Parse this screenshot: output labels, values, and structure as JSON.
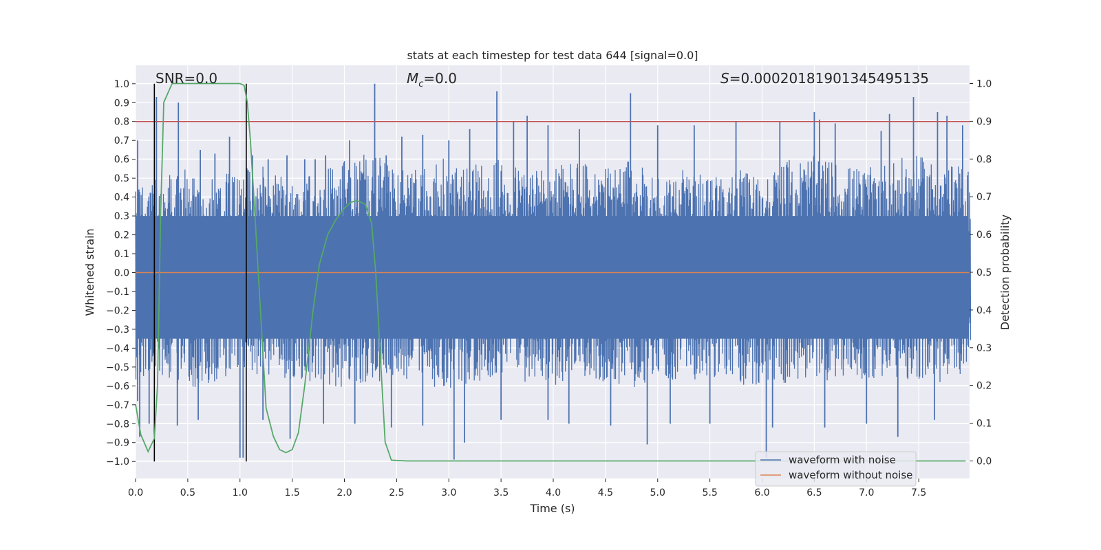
{
  "chart_data": {
    "type": "line",
    "title": "stats at each timestep for test data 644 [signal=0.0]",
    "xlabel": "Time (s)",
    "ylabel": "Whitened strain",
    "y2label": "Detection probability",
    "xlim": [
      0.0,
      8.0
    ],
    "ylim": [
      -1.08,
      1.1
    ],
    "y2lim": [
      -0.05,
      1.05
    ],
    "xticks": [
      "0.0",
      "0.5",
      "1.0",
      "1.5",
      "2.0",
      "2.5",
      "3.0",
      "3.5",
      "4.0",
      "4.5",
      "5.0",
      "5.5",
      "6.0",
      "6.5",
      "7.0",
      "7.5"
    ],
    "yticks": [
      "1.0",
      "0.9",
      "0.8",
      "0.7",
      "0.6",
      "0.5",
      "0.4",
      "0.3",
      "0.2",
      "0.1",
      "0.0",
      "−0.1",
      "−0.2",
      "−0.3",
      "−0.4",
      "−0.5",
      "−0.6",
      "−0.7",
      "−0.8",
      "−0.9",
      "−1.0"
    ],
    "y2ticks": [
      "1.0",
      "0.9",
      "0.8",
      "0.7",
      "0.6",
      "0.5",
      "0.4",
      "0.3",
      "0.2",
      "0.1",
      "0.0"
    ],
    "grid": true,
    "legend_position": "lower-right",
    "annotations": {
      "snr": "SNR=0.0",
      "mc_symbol": "M",
      "mc_sub": "c",
      "mc_value": "=0.0",
      "s_symbol": "S",
      "s_value": "=0.00020181901345495135"
    },
    "threshold": {
      "y": 0.8,
      "color": "#c44e52"
    },
    "vertical_markers": [
      0.18,
      1.06
    ],
    "series": [
      {
        "name": "waveform with noise",
        "color": "#4c72b0",
        "axis": "left",
        "envelope_top": [
          [
            0.0,
            0.45
          ],
          [
            0.25,
            0.52
          ],
          [
            0.5,
            0.55
          ],
          [
            0.75,
            0.5
          ],
          [
            1.0,
            0.55
          ],
          [
            1.25,
            0.58
          ],
          [
            1.5,
            0.5
          ],
          [
            1.75,
            0.52
          ],
          [
            2.0,
            0.6
          ],
          [
            2.25,
            0.65
          ],
          [
            2.5,
            0.55
          ],
          [
            2.75,
            0.55
          ],
          [
            3.0,
            0.62
          ],
          [
            3.25,
            0.58
          ],
          [
            3.5,
            0.6
          ],
          [
            3.75,
            0.55
          ],
          [
            4.0,
            0.58
          ],
          [
            4.25,
            0.6
          ],
          [
            4.5,
            0.55
          ],
          [
            4.75,
            0.6
          ],
          [
            5.0,
            0.52
          ],
          [
            5.25,
            0.55
          ],
          [
            5.5,
            0.5
          ],
          [
            5.75,
            0.55
          ],
          [
            6.0,
            0.52
          ],
          [
            6.25,
            0.6
          ],
          [
            6.5,
            0.62
          ],
          [
            6.75,
            0.58
          ],
          [
            7.0,
            0.55
          ],
          [
            7.25,
            0.6
          ],
          [
            7.5,
            0.62
          ],
          [
            7.75,
            0.58
          ],
          [
            8.0,
            0.55
          ]
        ],
        "envelope_bottom": [
          [
            0.0,
            -0.6
          ],
          [
            0.25,
            -0.55
          ],
          [
            0.5,
            -0.62
          ],
          [
            0.75,
            -0.58
          ],
          [
            1.0,
            -0.52
          ],
          [
            1.25,
            -0.55
          ],
          [
            1.5,
            -0.6
          ],
          [
            1.75,
            -0.58
          ],
          [
            2.0,
            -0.62
          ],
          [
            2.25,
            -0.6
          ],
          [
            2.5,
            -0.55
          ],
          [
            2.75,
            -0.6
          ],
          [
            3.0,
            -0.62
          ],
          [
            3.25,
            -0.58
          ],
          [
            3.5,
            -0.55
          ],
          [
            3.75,
            -0.58
          ],
          [
            4.0,
            -0.6
          ],
          [
            4.25,
            -0.55
          ],
          [
            4.5,
            -0.58
          ],
          [
            4.75,
            -0.62
          ],
          [
            5.0,
            -0.55
          ],
          [
            5.25,
            -0.58
          ],
          [
            5.5,
            -0.55
          ],
          [
            5.75,
            -0.6
          ],
          [
            6.0,
            -0.62
          ],
          [
            6.25,
            -0.58
          ],
          [
            6.5,
            -0.6
          ],
          [
            6.75,
            -0.55
          ],
          [
            7.0,
            -0.58
          ],
          [
            7.25,
            -0.55
          ],
          [
            7.5,
            -0.6
          ],
          [
            7.75,
            -0.58
          ],
          [
            8.0,
            -0.55
          ]
        ],
        "peaks": [
          [
            0.02,
            0.7
          ],
          [
            0.2,
            0.93
          ],
          [
            0.41,
            0.9
          ],
          [
            0.62,
            0.65
          ],
          [
            0.76,
            0.63
          ],
          [
            0.9,
            0.72
          ],
          [
            1.12,
            0.62
          ],
          [
            1.27,
            0.6
          ],
          [
            1.45,
            0.62
          ],
          [
            1.62,
            0.6
          ],
          [
            1.72,
            0.6
          ],
          [
            1.82,
            0.62
          ],
          [
            2.05,
            0.7
          ],
          [
            2.29,
            1.0
          ],
          [
            2.4,
            0.62
          ],
          [
            2.55,
            0.72
          ],
          [
            2.75,
            0.73
          ],
          [
            3.0,
            0.7
          ],
          [
            3.2,
            0.76
          ],
          [
            3.46,
            0.96
          ],
          [
            3.62,
            0.8
          ],
          [
            3.75,
            0.83
          ],
          [
            3.95,
            0.78
          ],
          [
            4.25,
            0.76
          ],
          [
            4.74,
            0.95
          ],
          [
            5.0,
            0.78
          ],
          [
            5.35,
            0.78
          ],
          [
            5.75,
            0.8
          ],
          [
            6.17,
            0.8
          ],
          [
            6.5,
            0.85
          ],
          [
            6.55,
            0.81
          ],
          [
            6.7,
            0.79
          ],
          [
            7.14,
            0.75
          ],
          [
            7.22,
            0.84
          ],
          [
            7.45,
            0.93
          ],
          [
            7.68,
            0.85
          ],
          [
            7.77,
            0.83
          ],
          [
            7.92,
            0.78
          ]
        ],
        "troughs": [
          [
            0.02,
            -0.68
          ],
          [
            0.04,
            -0.87
          ],
          [
            0.13,
            -0.8
          ],
          [
            0.4,
            -0.81
          ],
          [
            0.6,
            -0.78
          ],
          [
            1.0,
            -0.98
          ],
          [
            1.03,
            -0.98
          ],
          [
            1.22,
            -0.78
          ],
          [
            1.48,
            -0.88
          ],
          [
            1.8,
            -0.8
          ],
          [
            2.1,
            -0.8
          ],
          [
            2.45,
            -0.82
          ],
          [
            2.75,
            -0.81
          ],
          [
            3.05,
            -0.99
          ],
          [
            3.15,
            -0.9
          ],
          [
            3.5,
            -0.78
          ],
          [
            3.95,
            -0.78
          ],
          [
            4.15,
            -0.8
          ],
          [
            4.55,
            -0.81
          ],
          [
            4.9,
            -0.91
          ],
          [
            5.12,
            -0.8
          ],
          [
            5.5,
            -0.8
          ],
          [
            6.04,
            -0.98
          ],
          [
            6.1,
            -0.82
          ],
          [
            6.6,
            -0.82
          ],
          [
            7.0,
            -0.8
          ],
          [
            7.3,
            -0.87
          ],
          [
            7.65,
            -0.78
          ]
        ]
      },
      {
        "name": "waveform without noise",
        "color": "#dd8452",
        "axis": "left",
        "points": [
          [
            0.0,
            0.0
          ],
          [
            8.0,
            0.0
          ]
        ]
      },
      {
        "name": "",
        "color": "#55a868",
        "axis": "right",
        "points": [
          [
            0.0,
            0.15
          ],
          [
            0.05,
            0.07
          ],
          [
            0.12,
            0.025
          ],
          [
            0.18,
            0.06
          ],
          [
            0.21,
            0.2
          ],
          [
            0.24,
            0.65
          ],
          [
            0.27,
            0.95
          ],
          [
            0.35,
            1.0
          ],
          [
            0.6,
            1.0
          ],
          [
            0.8,
            1.0
          ],
          [
            1.0,
            1.0
          ],
          [
            1.04,
            0.995
          ],
          [
            1.07,
            0.95
          ],
          [
            1.1,
            0.85
          ],
          [
            1.15,
            0.62
          ],
          [
            1.2,
            0.38
          ],
          [
            1.25,
            0.14
          ],
          [
            1.32,
            0.065
          ],
          [
            1.38,
            0.03
          ],
          [
            1.44,
            0.022
          ],
          [
            1.5,
            0.03
          ],
          [
            1.56,
            0.075
          ],
          [
            1.62,
            0.2
          ],
          [
            1.7,
            0.4
          ],
          [
            1.76,
            0.52
          ],
          [
            1.84,
            0.6
          ],
          [
            1.92,
            0.64
          ],
          [
            2.0,
            0.67
          ],
          [
            2.06,
            0.685
          ],
          [
            2.12,
            0.69
          ],
          [
            2.2,
            0.68
          ],
          [
            2.26,
            0.63
          ],
          [
            2.3,
            0.5
          ],
          [
            2.35,
            0.25
          ],
          [
            2.39,
            0.05
          ],
          [
            2.45,
            0.002
          ],
          [
            2.6,
            0.0
          ],
          [
            3.0,
            0.0
          ],
          [
            4.0,
            0.0
          ],
          [
            5.0,
            0.0
          ],
          [
            6.0,
            0.0
          ],
          [
            7.0,
            0.0
          ],
          [
            7.95,
            0.0
          ]
        ]
      }
    ]
  }
}
